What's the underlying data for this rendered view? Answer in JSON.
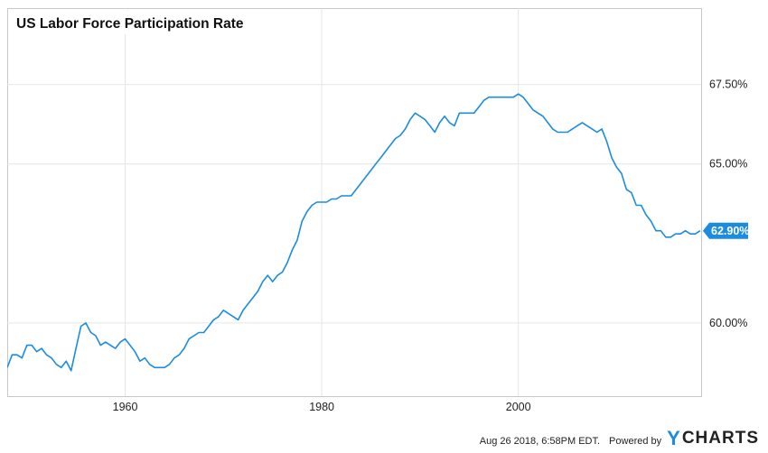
{
  "chart_data": {
    "type": "line",
    "title": "US Labor Force Participation Rate",
    "xlabel": "",
    "ylabel": "",
    "x_ticks": [
      "1960",
      "1980",
      "2000"
    ],
    "y_ticks": [
      "60.00%",
      "65.00%",
      "67.50%"
    ],
    "x_range": [
      1948,
      2018.6
    ],
    "ylim": [
      57.7,
      69.9
    ],
    "grid": true,
    "last_value_label": "62.90%",
    "line_color": "#1b8ce0",
    "series": [
      {
        "x": [
          1948.0,
          1948.5,
          1949.0,
          1949.5,
          1950.0,
          1950.5,
          1951.0,
          1951.5,
          1952.0,
          1952.5,
          1953.0,
          1953.5,
          1954.0,
          1954.5,
          1955.0,
          1955.5,
          1956.0,
          1956.5,
          1957.0,
          1957.5,
          1958.0,
          1958.5,
          1959.0,
          1959.5,
          1960.0,
          1960.5,
          1961.0,
          1961.5,
          1962.0,
          1962.5,
          1963.0,
          1963.5,
          1964.0,
          1964.5,
          1965.0,
          1965.5,
          1966.0,
          1966.5,
          1967.0,
          1967.5,
          1968.0,
          1968.5,
          1969.0,
          1969.5,
          1970.0,
          1970.5,
          1971.0,
          1971.5,
          1972.0,
          1972.5,
          1973.0,
          1973.5,
          1974.0,
          1974.5,
          1975.0,
          1975.5,
          1976.0,
          1976.5,
          1977.0,
          1977.5,
          1978.0,
          1978.5,
          1979.0,
          1979.5,
          1980.0,
          1980.5,
          1981.0,
          1981.5,
          1982.0,
          1982.5,
          1983.0,
          1983.5,
          1984.0,
          1984.5,
          1985.0,
          1985.5,
          1986.0,
          1986.5,
          1987.0,
          1987.5,
          1988.0,
          1988.5,
          1989.0,
          1989.5,
          1990.0,
          1990.5,
          1991.0,
          1991.5,
          1992.0,
          1992.5,
          1993.0,
          1993.5,
          1994.0,
          1994.5,
          1995.0,
          1995.5,
          1996.0,
          1996.5,
          1997.0,
          1997.5,
          1998.0,
          1998.5,
          1999.0,
          1999.5,
          2000.0,
          2000.5,
          2001.0,
          2001.5,
          2002.0,
          2002.5,
          2003.0,
          2003.5,
          2004.0,
          2004.5,
          2005.0,
          2005.5,
          2006.0,
          2006.5,
          2007.0,
          2007.5,
          2008.0,
          2008.5,
          2009.0,
          2009.5,
          2010.0,
          2010.5,
          2011.0,
          2011.5,
          2012.0,
          2012.5,
          2013.0,
          2013.5,
          2014.0,
          2014.5,
          2015.0,
          2015.5,
          2016.0,
          2016.5,
          2017.0,
          2017.5,
          2018.0,
          2018.5
        ],
        "values": [
          58.6,
          59.0,
          59.0,
          58.9,
          59.3,
          59.3,
          59.1,
          59.2,
          59.0,
          58.9,
          58.7,
          58.6,
          58.8,
          58.5,
          59.2,
          59.9,
          60.0,
          59.7,
          59.6,
          59.3,
          59.4,
          59.3,
          59.2,
          59.4,
          59.5,
          59.3,
          59.1,
          58.8,
          58.9,
          58.7,
          58.6,
          58.6,
          58.6,
          58.7,
          58.9,
          59.0,
          59.2,
          59.5,
          59.6,
          59.7,
          59.7,
          59.9,
          60.1,
          60.2,
          60.4,
          60.3,
          60.2,
          60.1,
          60.4,
          60.6,
          60.8,
          61.0,
          61.3,
          61.5,
          61.3,
          61.5,
          61.6,
          61.9,
          62.3,
          62.6,
          63.2,
          63.5,
          63.7,
          63.8,
          63.8,
          63.8,
          63.9,
          63.9,
          64.0,
          64.0,
          64.0,
          64.2,
          64.4,
          64.6,
          64.8,
          65.0,
          65.2,
          65.4,
          65.6,
          65.8,
          65.9,
          66.1,
          66.4,
          66.6,
          66.5,
          66.4,
          66.2,
          66.0,
          66.3,
          66.5,
          66.3,
          66.2,
          66.6,
          66.6,
          66.6,
          66.6,
          66.8,
          67.0,
          67.1,
          67.1,
          67.1,
          67.1,
          67.1,
          67.1,
          67.2,
          67.1,
          66.9,
          66.7,
          66.6,
          66.5,
          66.3,
          66.1,
          66.0,
          66.0,
          66.0,
          66.1,
          66.2,
          66.3,
          66.2,
          66.1,
          66.0,
          66.1,
          65.7,
          65.2,
          64.9,
          64.7,
          64.2,
          64.1,
          63.7,
          63.7,
          63.4,
          63.2,
          62.9,
          62.9,
          62.7,
          62.7,
          62.8,
          62.8,
          62.9,
          62.8,
          62.8,
          62.9
        ]
      }
    ]
  },
  "footer": {
    "timestamp": "Aug 26 2018, 6:58PM EDT.",
    "powered": "Powered by",
    "brand_y": "Y",
    "brand_rest": "CHARTS"
  }
}
